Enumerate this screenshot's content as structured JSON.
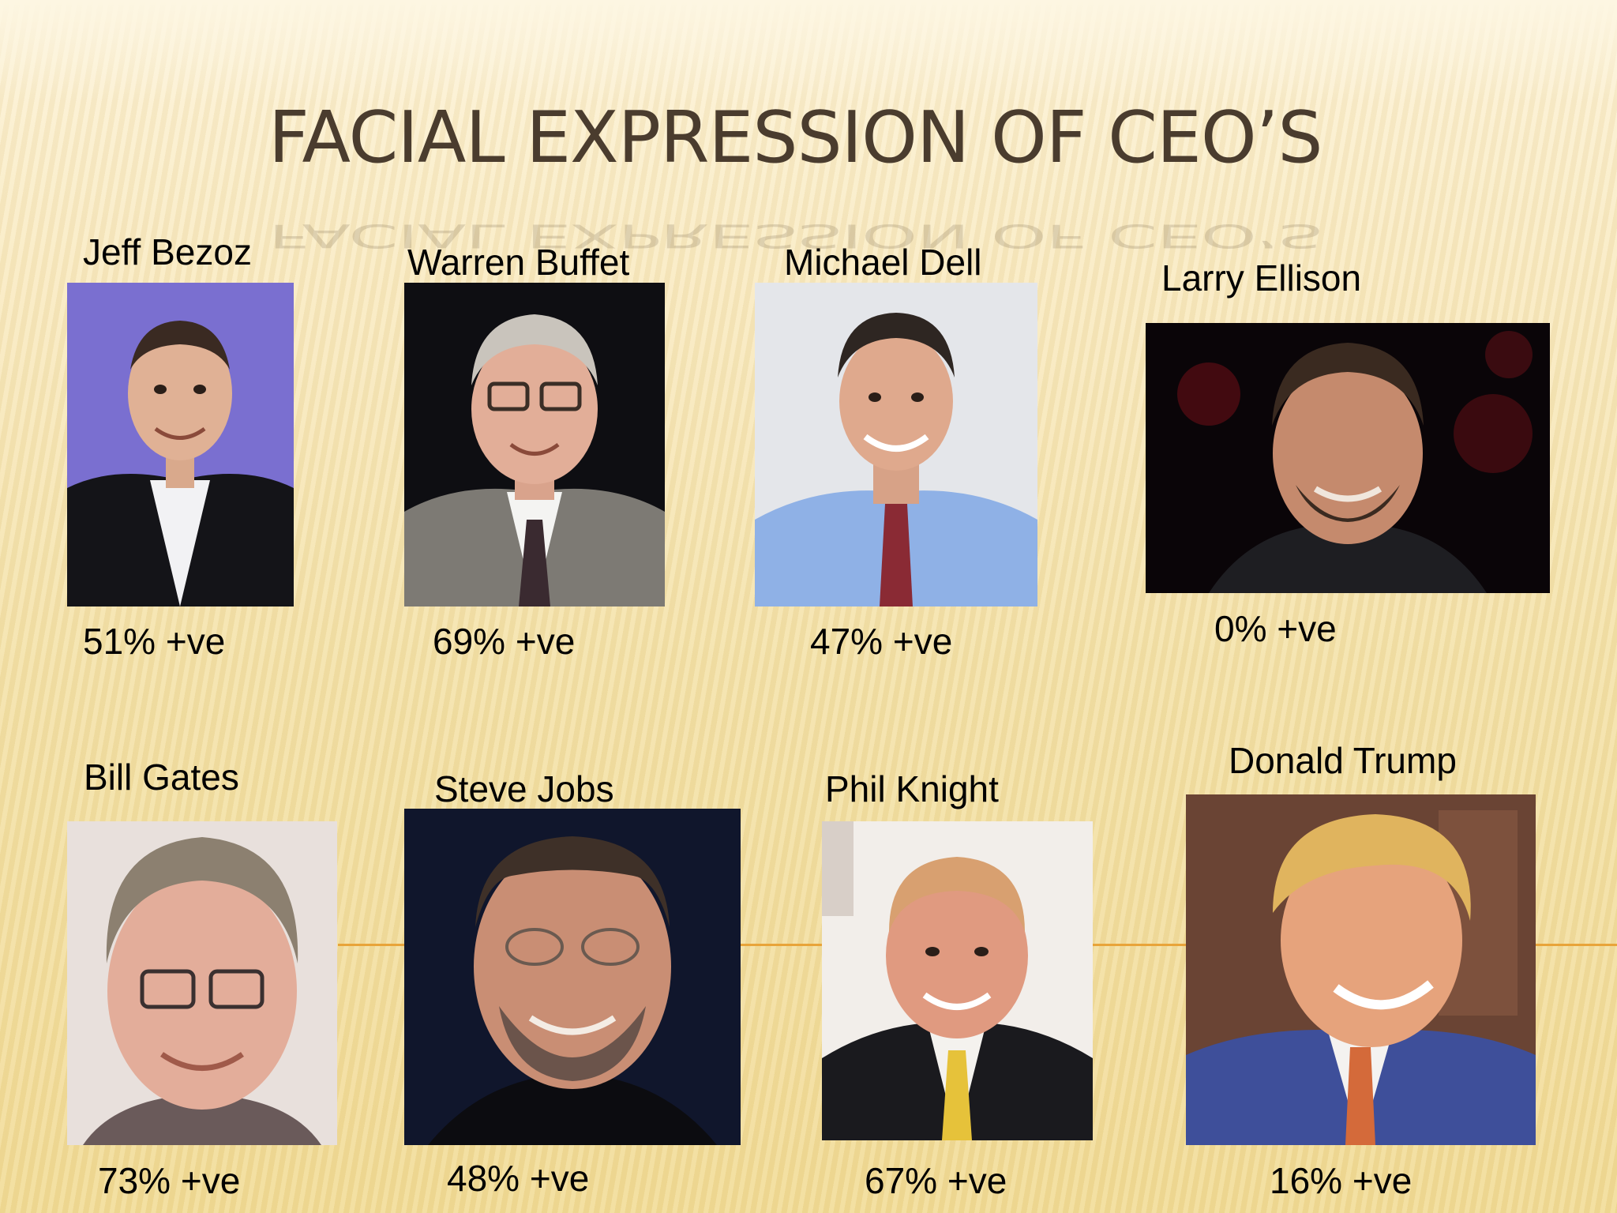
{
  "slide": {
    "title": "FACIAL EXPRESSION OF CEO’S"
  },
  "ceos": [
    {
      "name": "Jeff Bezoz",
      "positivity": "51% +ve"
    },
    {
      "name": "Warren Buffet",
      "positivity": "69% +ve"
    },
    {
      "name": "Michael Dell",
      "positivity": "47% +ve"
    },
    {
      "name": "Larry Ellison",
      "positivity": "0% +ve"
    },
    {
      "name": "Bill Gates",
      "positivity": "73% +ve"
    },
    {
      "name": "Steve Jobs",
      "positivity": "48% +ve"
    },
    {
      "name": "Phil Knight",
      "positivity": "67% +ve"
    },
    {
      "name": "Donald Trump",
      "positivity": "16% +ve"
    }
  ],
  "colors": {
    "title": "#4a3c2e",
    "accent_line": "#e8a43a",
    "text": "#000000"
  }
}
